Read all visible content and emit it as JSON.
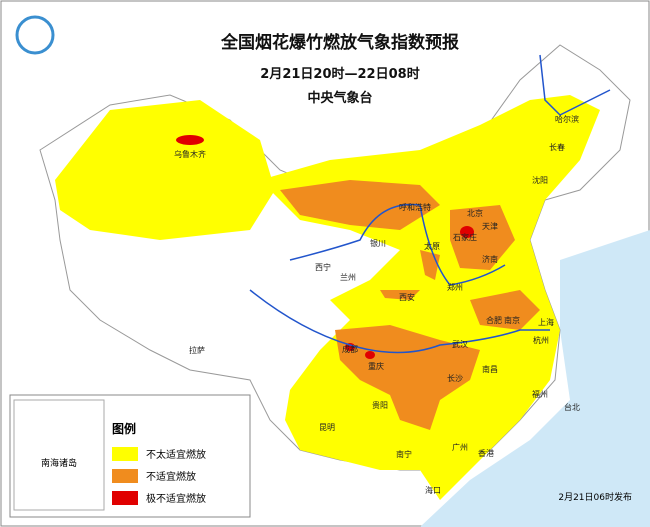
{
  "header": {
    "title": "全国烟花爆竹燃放气象指数预报",
    "period": "2月21日20时—22日08时",
    "issuer": "中央气象台"
  },
  "legend": {
    "title": "图例",
    "items": [
      {
        "label": "不太适宜燃放",
        "color": "#ffff00"
      },
      {
        "label": "不适宜燃放",
        "color": "#f08c1e"
      },
      {
        "label": "极不适宜燃放",
        "color": "#e00000"
      }
    ]
  },
  "cities": [
    "乌鲁木齐",
    "哈尔滨",
    "长春",
    "沈阳",
    "呼和浩特",
    "北京",
    "天津",
    "石家庄",
    "太原",
    "济南",
    "银川",
    "西宁",
    "兰州",
    "郑州",
    "西安",
    "合肥",
    "南京",
    "上海",
    "成都",
    "武汉",
    "杭州",
    "重庆",
    "长沙",
    "南昌",
    "福州",
    "贵阳",
    "昆明",
    "台北",
    "南宁",
    "广州",
    "香港",
    "海口",
    "拉萨"
  ],
  "inset_label": "南海诸岛",
  "release": "2月21日06时发布"
}
